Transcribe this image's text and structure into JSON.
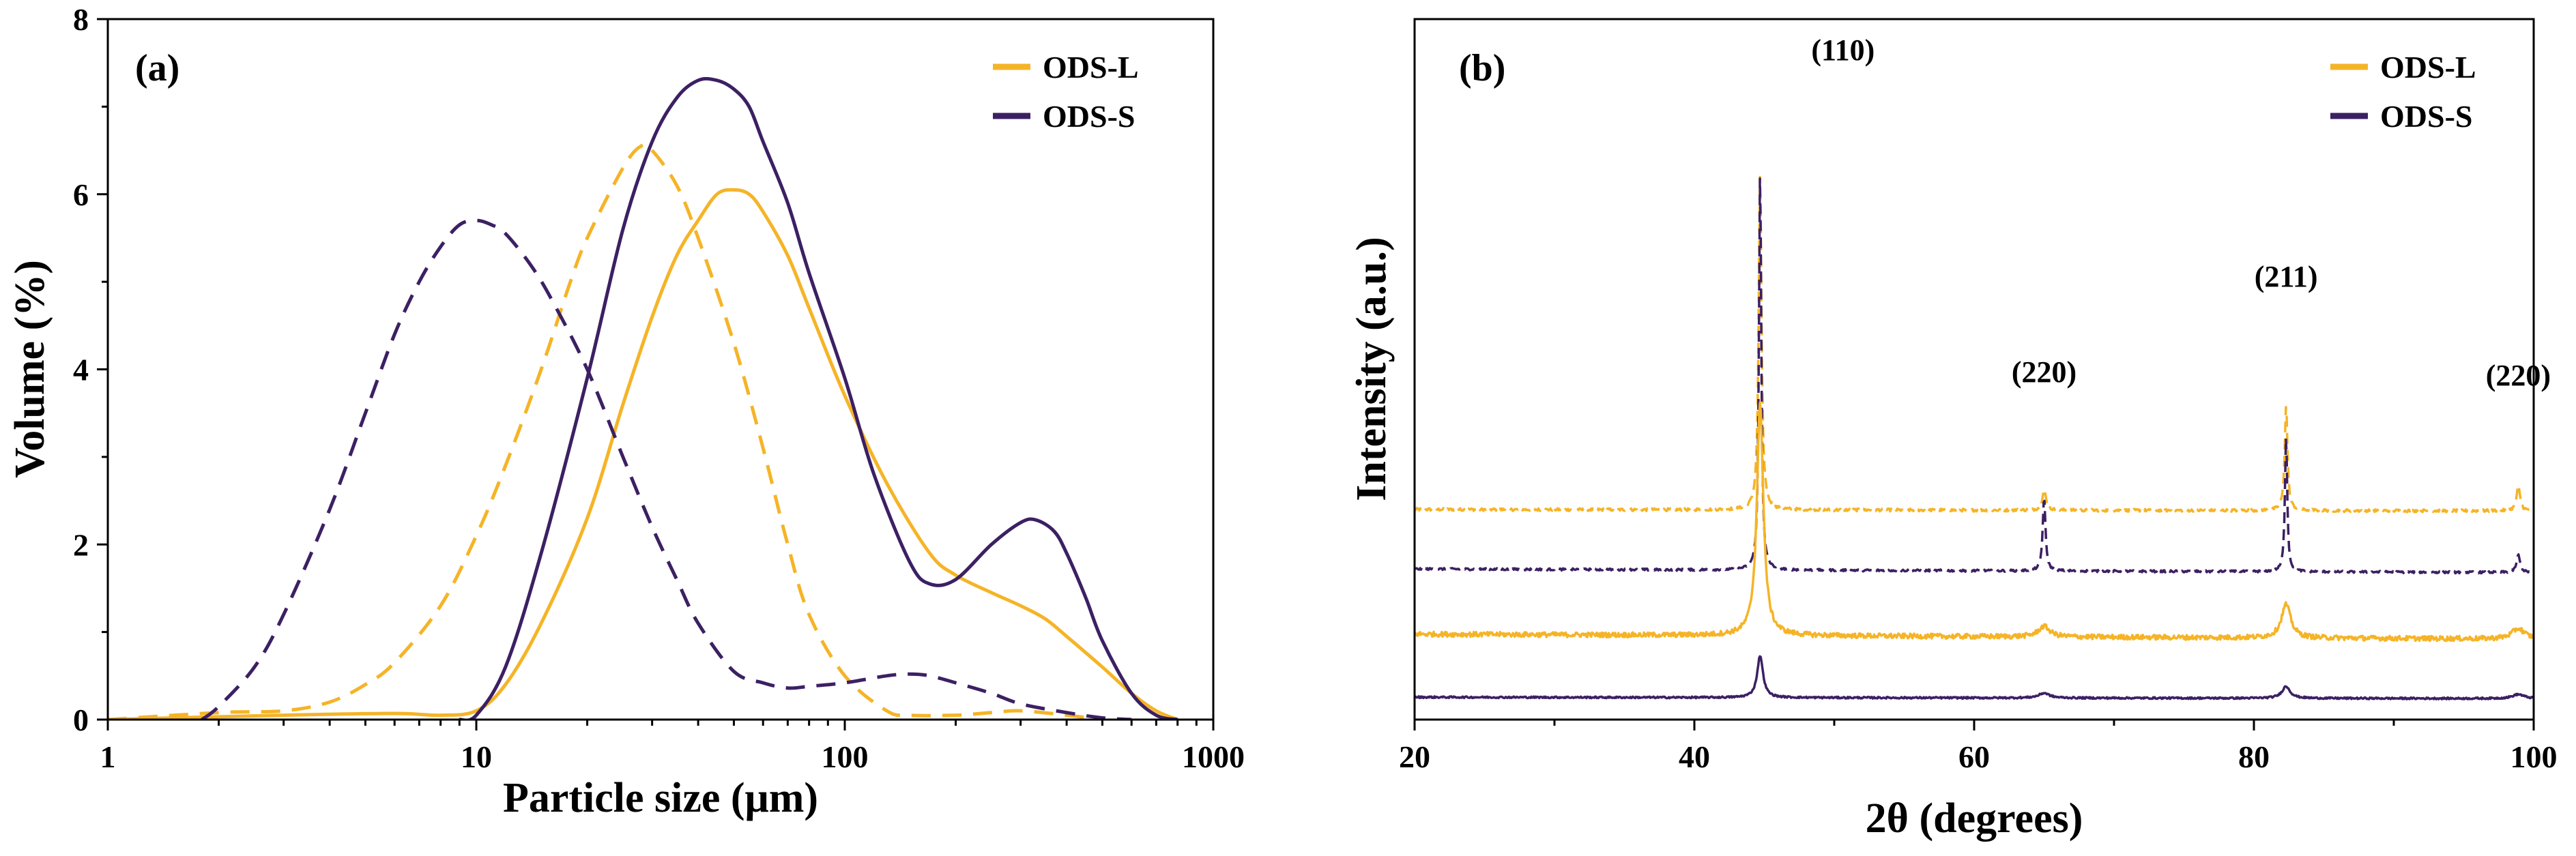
{
  "colors": {
    "ods_l": "#F5B427",
    "ods_s": "#3C2063"
  },
  "chart_data": [
    {
      "type": "line",
      "panel_label": "(a)",
      "xlabel": "Particle size (μm)",
      "ylabel": "Volume (%)",
      "xscale": "log",
      "xlim": [
        1,
        1000
      ],
      "ylim": [
        0,
        8
      ],
      "xticks": [
        1,
        10,
        100,
        1000
      ],
      "xtick_labels": [
        "1",
        "10",
        "100",
        "1000"
      ],
      "yticks": [
        0,
        2,
        4,
        6,
        8
      ],
      "ytick_labels": [
        "0",
        "2",
        "4",
        "6",
        "8"
      ],
      "legend": [
        "ODS-L",
        "ODS-S"
      ],
      "legend_position": "top-right",
      "series": [
        {
          "name": "ODS-L",
          "style": "solid",
          "color": "#F5B427",
          "x": [
            1,
            3,
            6,
            8,
            10,
            12,
            15,
            20,
            25,
            30,
            35,
            40,
            45,
            50,
            55,
            60,
            70,
            80,
            100,
            130,
            170,
            200,
            250,
            300,
            350,
            400,
            500,
            600,
            700,
            800
          ],
          "y": [
            0,
            0.05,
            0.07,
            0.05,
            0.1,
            0.4,
            1.1,
            2.3,
            3.6,
            4.6,
            5.3,
            5.7,
            6.0,
            6.05,
            6.0,
            5.8,
            5.3,
            4.7,
            3.7,
            2.7,
            1.9,
            1.65,
            1.45,
            1.3,
            1.15,
            0.95,
            0.6,
            0.3,
            0.1,
            0
          ]
        },
        {
          "name": "ODS-S",
          "style": "solid",
          "color": "#3C2063",
          "x": [
            9,
            10,
            12,
            15,
            20,
            25,
            30,
            35,
            40,
            45,
            50,
            55,
            60,
            70,
            80,
            100,
            120,
            150,
            170,
            200,
            250,
            300,
            330,
            370,
            400,
            450,
            500,
            600,
            700,
            800
          ],
          "y": [
            0,
            0.05,
            0.6,
            1.9,
            3.9,
            5.6,
            6.6,
            7.1,
            7.3,
            7.3,
            7.2,
            7.0,
            6.6,
            5.9,
            5.1,
            3.9,
            2.8,
            1.8,
            1.55,
            1.6,
            2.0,
            2.25,
            2.28,
            2.15,
            1.9,
            1.4,
            0.9,
            0.3,
            0.05,
            0
          ]
        },
        {
          "name": "ODS-L",
          "style": "dashed",
          "color": "#F5B427",
          "x": [
            1,
            2,
            3,
            4,
            5,
            6,
            8,
            10,
            12,
            15,
            18,
            20,
            25,
            28,
            30,
            35,
            40,
            50,
            60,
            70,
            80,
            100,
            130,
            150,
            200,
            250,
            300,
            400,
            500
          ],
          "y": [
            0,
            0.08,
            0.1,
            0.2,
            0.4,
            0.65,
            1.3,
            2.1,
            2.9,
            4.0,
            5.0,
            5.5,
            6.3,
            6.55,
            6.5,
            6.1,
            5.5,
            4.3,
            3.1,
            2.0,
            1.2,
            0.5,
            0.1,
            0.05,
            0.05,
            0.08,
            0.1,
            0.05,
            0
          ]
        },
        {
          "name": "ODS-S",
          "style": "dashed",
          "color": "#3C2063",
          "x": [
            1.8,
            2,
            2.5,
            3,
            4,
            5,
            6,
            7,
            8,
            9,
            10,
            11,
            12,
            14,
            16,
            20,
            25,
            30,
            35,
            40,
            50,
            60,
            70,
            80,
            100,
            130,
            150,
            170,
            200,
            250,
            300,
            400,
            500,
            600
          ],
          "y": [
            0,
            0.15,
            0.6,
            1.2,
            2.4,
            3.5,
            4.4,
            5.0,
            5.4,
            5.65,
            5.7,
            5.65,
            5.55,
            5.2,
            4.8,
            4.0,
            3.0,
            2.2,
            1.6,
            1.1,
            0.55,
            0.42,
            0.36,
            0.38,
            0.42,
            0.5,
            0.52,
            0.5,
            0.42,
            0.3,
            0.18,
            0.08,
            0.02,
            0
          ]
        }
      ]
    },
    {
      "type": "line",
      "panel_label": "(b)",
      "xlabel": "2θ (degrees)",
      "ylabel": "Intensity (a.u.)",
      "xlim": [
        20,
        100
      ],
      "xticks": [
        20,
        40,
        60,
        80,
        100
      ],
      "xtick_labels": [
        "20",
        "40",
        "60",
        "80",
        "100"
      ],
      "y_ticks_shown": false,
      "legend": [
        "ODS-L",
        "ODS-S"
      ],
      "legend_position": "top-right",
      "peak_labels": [
        {
          "text": "(110)",
          "x": 44.7
        },
        {
          "text": "(220)",
          "x": 65.0
        },
        {
          "text": "(211)",
          "x": 82.3
        },
        {
          "text": "(220)",
          "x": 98.9
        }
      ],
      "peak_positions": [
        44.7,
        65.0,
        82.3,
        98.9
      ],
      "series": [
        {
          "name": "ODS-L",
          "style": "dashed",
          "color": "#F5B427",
          "baseline_start": 3.0,
          "baseline_end": 2.98,
          "peak_heights": [
            4.8,
            0.3,
            1.5,
            0.35
          ],
          "peak_widths": [
            0.12,
            0.15,
            0.12,
            0.15
          ],
          "noise": 0.02
        },
        {
          "name": "ODS-S",
          "style": "dashed",
          "color": "#3C2063",
          "baseline_start": 2.15,
          "baseline_end": 2.1,
          "peak_heights": [
            5.7,
            1.05,
            1.95,
            0.25
          ],
          "peak_widths": [
            0.1,
            0.12,
            0.1,
            0.15
          ],
          "noise": 0.015
        },
        {
          "name": "ODS-L",
          "style": "solid",
          "color": "#F5B427",
          "baseline_start": 1.22,
          "baseline_end": 1.15,
          "peak_heights": [
            3.3,
            0.15,
            0.48,
            0.15
          ],
          "peak_widths": [
            0.28,
            0.5,
            0.4,
            0.55
          ],
          "noise": 0.035
        },
        {
          "name": "ODS-S",
          "style": "solid",
          "color": "#3C2063",
          "baseline_start": 0.32,
          "baseline_end": 0.3,
          "peak_heights": [
            0.6,
            0.07,
            0.17,
            0.06
          ],
          "peak_widths": [
            0.25,
            0.45,
            0.35,
            0.5
          ],
          "noise": 0.012
        }
      ]
    }
  ]
}
